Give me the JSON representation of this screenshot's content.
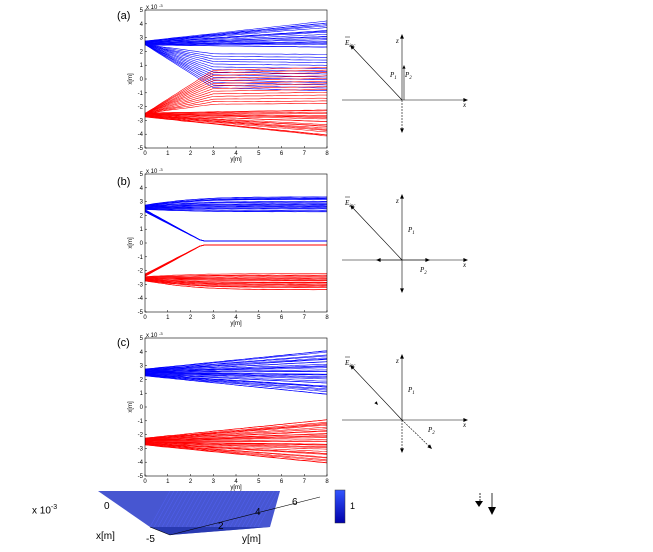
{
  "panels": [
    {
      "label": "(a)",
      "case": "a"
    },
    {
      "label": "(b)",
      "case": "b"
    },
    {
      "label": "(c)",
      "case": "c"
    }
  ],
  "axes": {
    "xlabel": "y[m]",
    "ylabel": "x[m]",
    "exponent": "x 10",
    "exponent_power": "-3",
    "xticks": [
      "0",
      "1",
      "2",
      "3",
      "4",
      "5",
      "6",
      "7",
      "8"
    ],
    "yticks": [
      "5",
      "4",
      "3",
      "2",
      "1",
      "0",
      "-1",
      "-2",
      "-3",
      "-4",
      "-5"
    ]
  },
  "diagram": {
    "axis_z": "z",
    "axis_x": "x",
    "e_vec": "E",
    "e_sub": "inc",
    "p1": "P",
    "p1_sub": "1",
    "p2": "P",
    "p2_sub": "2"
  },
  "bottom": {
    "exponent": "x 10",
    "exponent_power": "-3",
    "x_axis": "x[m]",
    "y_axis": "y[m]",
    "x_ticks": [
      "0",
      "-5"
    ],
    "y_ticks": [
      "2",
      "4",
      "6"
    ],
    "colorbar_tick": "1"
  },
  "colors": {
    "upper_beam": "#0000ff",
    "lower_beam": "#ff0000",
    "surface": "#3344cc"
  },
  "chart_data": [
    {
      "type": "line",
      "title": "(a)",
      "xlabel": "y[m]",
      "ylabel": "x[m]",
      "xlim": [
        0,
        8
      ],
      "ylim": [
        -5,
        5
      ],
      "series": [
        {
          "name": "",
          "values": []
        }
      ]
    },
    {
      "type": "line",
      "title": "(b)",
      "xlabel": "y[m]",
      "ylabel": "x[m]",
      "xlim": [
        0,
        8
      ],
      "ylim": [
        -5,
        5
      ],
      "series": [
        {
          "name": "",
          "values": []
        }
      ]
    },
    {
      "type": "line",
      "title": "(c)",
      "xlabel": "y[m]",
      "ylabel": "x[m]",
      "xlim": [
        0,
        8
      ],
      "ylim": [
        -5,
        5
      ],
      "series": [
        {
          "name": "",
          "values": []
        }
      ]
    }
  ]
}
